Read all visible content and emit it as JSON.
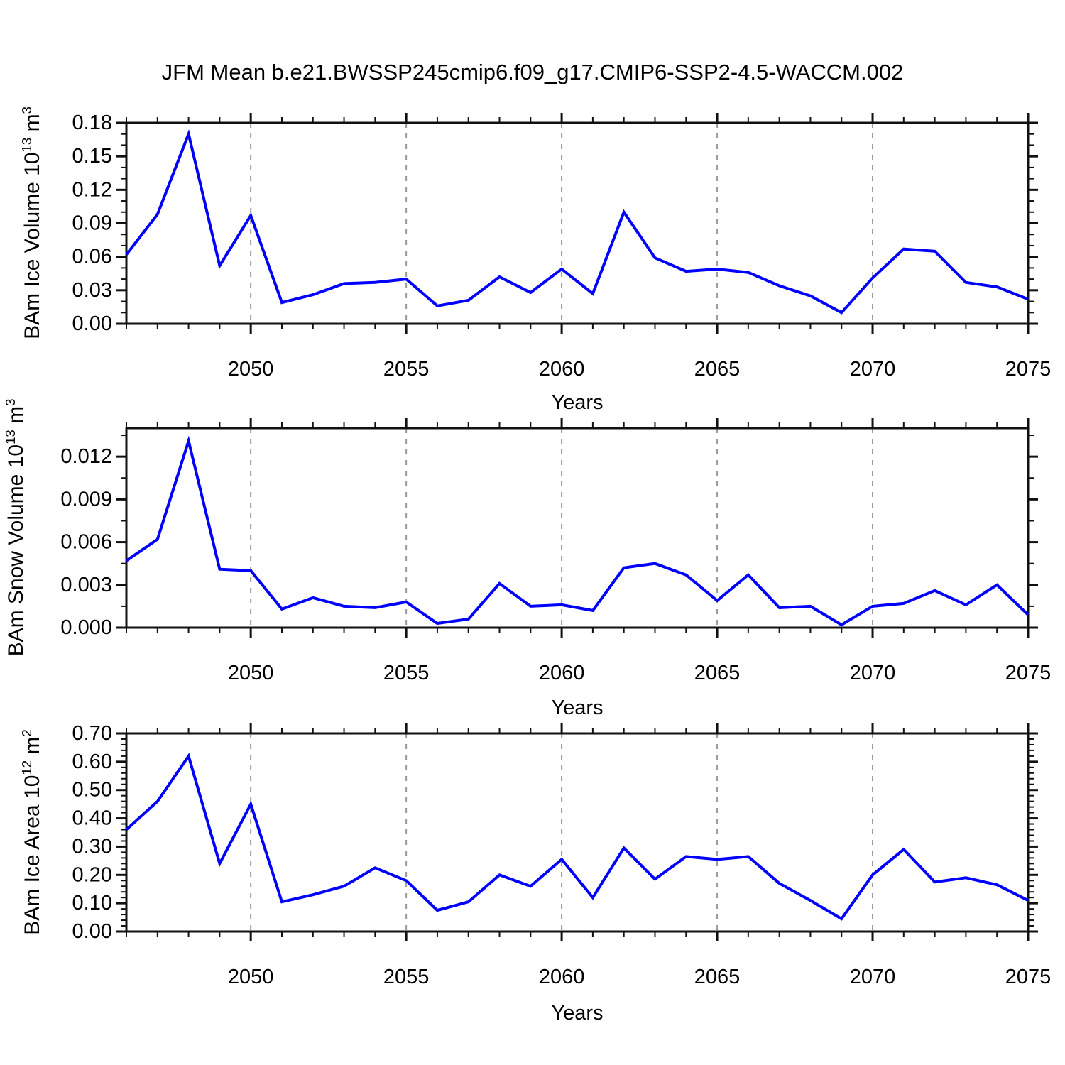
{
  "title": "JFM Mean b.e21.BWSSP245cmip6.f09_g17.CMIP6-SSP2-4.5-WACCM.002",
  "chart_data": {
    "type": "line",
    "x_label": "Years",
    "x": [
      2046,
      2047,
      2048,
      2049,
      2050,
      2051,
      2052,
      2053,
      2054,
      2055,
      2056,
      2057,
      2058,
      2059,
      2060,
      2061,
      2062,
      2063,
      2064,
      2065,
      2066,
      2067,
      2068,
      2069,
      2070,
      2071,
      2072,
      2073,
      2074,
      2075
    ],
    "x_range": [
      2046,
      2075
    ],
    "x_ticks_labeled": [
      "2050",
      "2055",
      "2060",
      "2065",
      "2070",
      "2075"
    ],
    "x_tick_label_years": [
      2050,
      2055,
      2060,
      2065,
      2070,
      2075
    ],
    "x_grid_years": [
      2050,
      2055,
      2060,
      2065,
      2070
    ],
    "grid_on": true,
    "legend": "none",
    "line_color": "#0000ff",
    "grid_color": "#999999",
    "frame_color": "#111111",
    "panels": [
      {
        "name": "ice-volume",
        "ylabel_text": "BAm Ice Volume 10^13 m^3",
        "ylabel_base": "BAm Ice Volume 10",
        "ylabel_exp": "13",
        "ylabel_unit": " m",
        "ylabel_unit_exp": "3",
        "ylim": [
          0,
          0.18
        ],
        "ymajor": 0.03,
        "yminor": 0.01,
        "ytick_labels": [
          "0.00",
          "0.03",
          "0.06",
          "0.09",
          "0.12",
          "0.15",
          "0.18"
        ],
        "ytick_values": [
          0.0,
          0.03,
          0.06,
          0.09,
          0.12,
          0.15,
          0.18
        ],
        "values": [
          0.062,
          0.098,
          0.17,
          0.052,
          0.097,
          0.019,
          0.026,
          0.036,
          0.037,
          0.04,
          0.016,
          0.021,
          0.042,
          0.028,
          0.049,
          0.027,
          0.1,
          0.059,
          0.047,
          0.049,
          0.046,
          0.034,
          0.025,
          0.01,
          0.041,
          0.067,
          0.065,
          0.037,
          0.033,
          0.022
        ]
      },
      {
        "name": "snow-volume",
        "ylabel_text": "BAm Snow Volume 10^13 m^3",
        "ylabel_base": "BAm Snow Volume 10",
        "ylabel_exp": "13",
        "ylabel_unit": " m",
        "ylabel_unit_exp": "3",
        "ylim": [
          0,
          0.014
        ],
        "ymajor": 0.003,
        "yminor": 0.0015,
        "ytick_labels": [
          "0.000",
          "0.003",
          "0.006",
          "0.009",
          "0.012"
        ],
        "ytick_values": [
          0.0,
          0.003,
          0.006,
          0.009,
          0.012
        ],
        "values": [
          0.0047,
          0.0062,
          0.0131,
          0.0041,
          0.004,
          0.0013,
          0.0021,
          0.0015,
          0.0014,
          0.0018,
          0.0003,
          0.0006,
          0.0031,
          0.0015,
          0.0016,
          0.0012,
          0.0042,
          0.0045,
          0.0037,
          0.0019,
          0.0037,
          0.0014,
          0.0015,
          0.0002,
          0.0015,
          0.0017,
          0.0026,
          0.0016,
          0.003,
          0.0009
        ]
      },
      {
        "name": "ice-area",
        "ylabel_text": "BAm Ice Area 10^12 m^2",
        "ylabel_base": "BAm Ice Area 10",
        "ylabel_exp": "12",
        "ylabel_unit": " m",
        "ylabel_unit_exp": "2",
        "ylim": [
          0,
          0.7
        ],
        "ymajor": 0.1,
        "yminor": 0.02,
        "ytick_labels": [
          "0.00",
          "0.10",
          "0.20",
          "0.30",
          "0.40",
          "0.50",
          "0.60",
          "0.70"
        ],
        "ytick_values": [
          0.0,
          0.1,
          0.2,
          0.3,
          0.4,
          0.5,
          0.6,
          0.7
        ],
        "values": [
          0.36,
          0.46,
          0.62,
          0.24,
          0.45,
          0.105,
          0.13,
          0.16,
          0.225,
          0.18,
          0.075,
          0.105,
          0.2,
          0.16,
          0.255,
          0.12,
          0.295,
          0.185,
          0.265,
          0.255,
          0.265,
          0.17,
          0.11,
          0.045,
          0.2,
          0.29,
          0.175,
          0.19,
          0.165,
          0.11
        ]
      }
    ]
  }
}
